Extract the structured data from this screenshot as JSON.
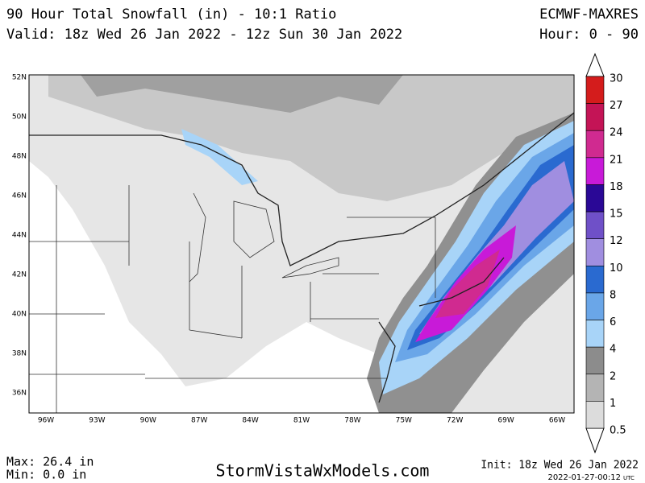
{
  "header": {
    "title": "90 Hour Total Snowfall (in) - 10:1 Ratio",
    "valid": "Valid: 18z Wed 26 Jan 2022 - 12z Sun 30 Jan 2022",
    "model": "ECMWF-MAXRES",
    "hour": "Hour: 0 - 90"
  },
  "map": {
    "lat_labels": [
      "52N",
      "50N",
      "48N",
      "46N",
      "44N",
      "42N",
      "40N",
      "38N",
      "36N"
    ],
    "lon_labels": [
      "96W",
      "93W",
      "90W",
      "87W",
      "84W",
      "81W",
      "78W",
      "75W",
      "72W",
      "69W",
      "66W"
    ]
  },
  "colorbar": {
    "levels": [
      30,
      27,
      24,
      21,
      18,
      15,
      12,
      10,
      8,
      6,
      4,
      2,
      1,
      0.5
    ],
    "colors": [
      "#d41c1c",
      "#c41456",
      "#d02a90",
      "#c81ad8",
      "#2a0896",
      "#6f50c8",
      "#a08ee0",
      "#2a6ad0",
      "#6aa6e8",
      "#a8d4f8",
      "#8c8c8c",
      "#b4b4b4",
      "#dcdcdc"
    ]
  },
  "footer": {
    "max": "Max: 26.4 in",
    "min": "Min: 0.0 in",
    "site": "StormVistaWxModels.com",
    "init": "Init: 18z Wed 26 Jan 2022",
    "stamp": "2022-01-27-00:12",
    "tz": "UTC"
  }
}
